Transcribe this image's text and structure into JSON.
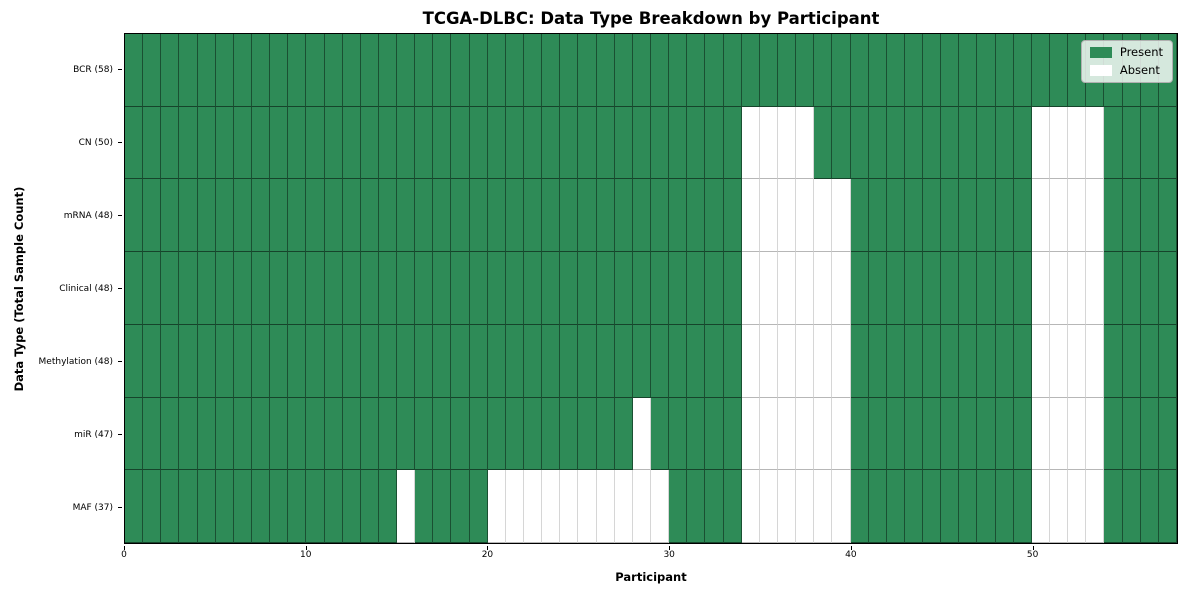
{
  "chart_data": {
    "type": "heatmap",
    "title": "TCGA-DLBC: Data Type Breakdown by Participant",
    "xlabel": "Participant",
    "ylabel": "Data Type (Total Sample Count)",
    "n_participants": 58,
    "x_ticks": [
      0,
      10,
      20,
      30,
      40,
      50
    ],
    "x_range": [
      0,
      58
    ],
    "grid": "cell-edges",
    "legend_position": "upper-right-inside",
    "rows": [
      {
        "label": "BCR (58)",
        "data_type": "BCR",
        "total_present": 58,
        "absent_participants": []
      },
      {
        "label": "CN (50)",
        "data_type": "CN",
        "total_present": 50,
        "absent_participants": [
          34,
          35,
          36,
          37,
          50,
          51,
          52,
          53
        ]
      },
      {
        "label": "mRNA (48)",
        "data_type": "mRNA",
        "total_present": 48,
        "absent_participants": [
          34,
          35,
          36,
          37,
          38,
          39,
          50,
          51,
          52,
          53
        ]
      },
      {
        "label": "Clinical (48)",
        "data_type": "Clinical",
        "total_present": 48,
        "absent_participants": [
          34,
          35,
          36,
          37,
          38,
          39,
          50,
          51,
          52,
          53
        ]
      },
      {
        "label": "Methylation (48)",
        "data_type": "Methylation",
        "total_present": 48,
        "absent_participants": [
          34,
          35,
          36,
          37,
          38,
          39,
          50,
          51,
          52,
          53
        ]
      },
      {
        "label": "miR (47)",
        "data_type": "miR",
        "total_present": 47,
        "absent_participants": [
          28,
          34,
          35,
          36,
          37,
          38,
          39,
          50,
          51,
          52,
          53
        ]
      },
      {
        "label": "MAF (37)",
        "data_type": "MAF",
        "total_present": 37,
        "absent_participants": [
          15,
          20,
          21,
          22,
          23,
          24,
          25,
          26,
          27,
          28,
          29,
          34,
          35,
          36,
          37,
          38,
          39,
          50,
          51,
          52,
          53
        ]
      }
    ],
    "legend": [
      {
        "label": "Present",
        "color": "#2E8B57"
      },
      {
        "label": "Absent",
        "color": "#FFFFFF"
      }
    ],
    "colors": {
      "present": "#2E8B57",
      "absent": "#FFFFFF",
      "cell_edge": "#000000",
      "axis_border": "#000000"
    }
  }
}
